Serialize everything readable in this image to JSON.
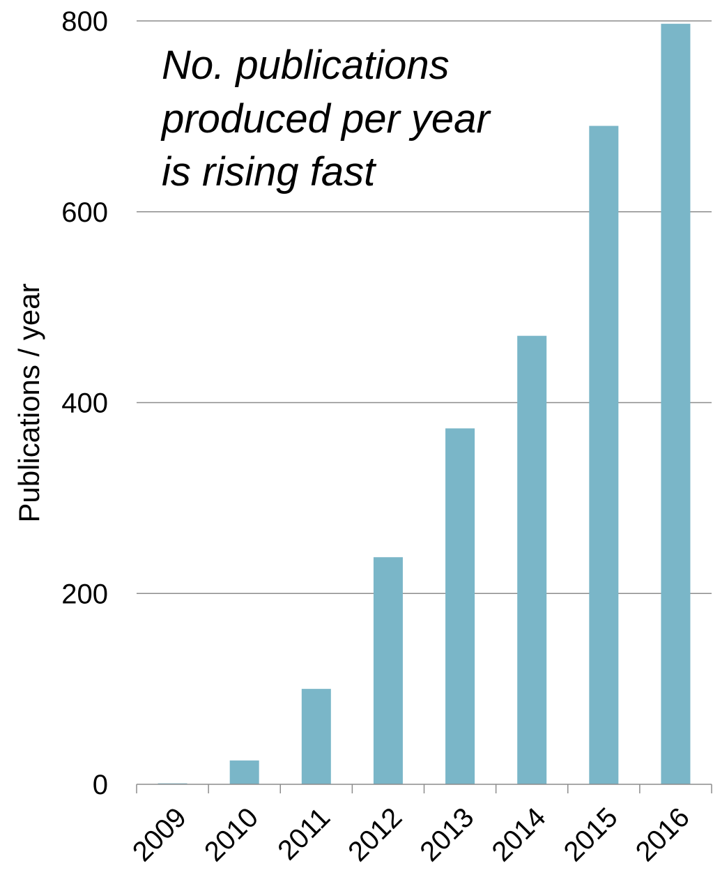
{
  "chart_data": {
    "type": "bar",
    "categories": [
      "2009",
      "2010",
      "2011",
      "2012",
      "2013",
      "2014",
      "2015",
      "2016"
    ],
    "values": [
      1,
      25,
      100,
      238,
      373,
      470,
      690,
      797
    ],
    "xlabel": "",
    "ylabel": "Publications / year",
    "ylim": [
      0,
      800
    ],
    "yticks": [
      0,
      200,
      400,
      600,
      800
    ],
    "grid": true,
    "bar_color": "#7ab6c8",
    "annotation_lines": [
      "No. publications",
      "produced per year",
      "is rising fast"
    ]
  }
}
